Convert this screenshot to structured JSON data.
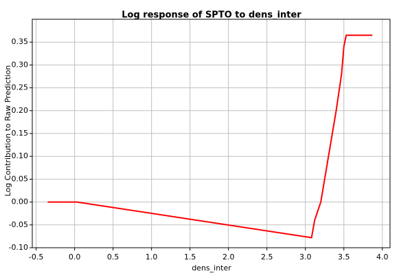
{
  "chart_data": {
    "type": "line",
    "title": "Log response of SPTO to dens_inter",
    "x_label": "dens_inter",
    "y_label": "Log Contribution to Raw Prediction",
    "x": [
      -0.35,
      0.03,
      3.08,
      3.12,
      3.2,
      3.3,
      3.4,
      3.47,
      3.5,
      3.53,
      3.87
    ],
    "series": [
      {
        "name": "SPTO",
        "color": "#ff0000",
        "values": [
          0,
          0,
          -0.078,
          -0.04,
          0.0,
          0.1,
          0.2,
          0.28,
          0.34,
          0.365,
          0.365
        ]
      }
    ],
    "xlim": [
      -0.55,
      4.1
    ],
    "ylim": [
      -0.1,
      0.4
    ],
    "xticks": [
      -0.5,
      {
        "value": 0,
        "label": "0.0"
      },
      0.5,
      {
        "value": 1,
        "label": "1.0"
      },
      1.5,
      {
        "value": 2,
        "label": "2.0"
      },
      2.5,
      {
        "value": 3,
        "label": "3.0"
      },
      3.5,
      {
        "value": 4,
        "label": "4.0"
      }
    ],
    "yticks": [
      {
        "value": -0.1,
        "label": "-0.10"
      },
      -0.05,
      {
        "value": 0,
        "label": "0.00"
      },
      0.05,
      {
        "value": 0.1,
        "label": "0.10"
      },
      0.15,
      {
        "value": 0.2,
        "label": "0.20"
      },
      0.25,
      {
        "value": 0.3,
        "label": "0.30"
      },
      0.35
    ],
    "grid": true
  }
}
